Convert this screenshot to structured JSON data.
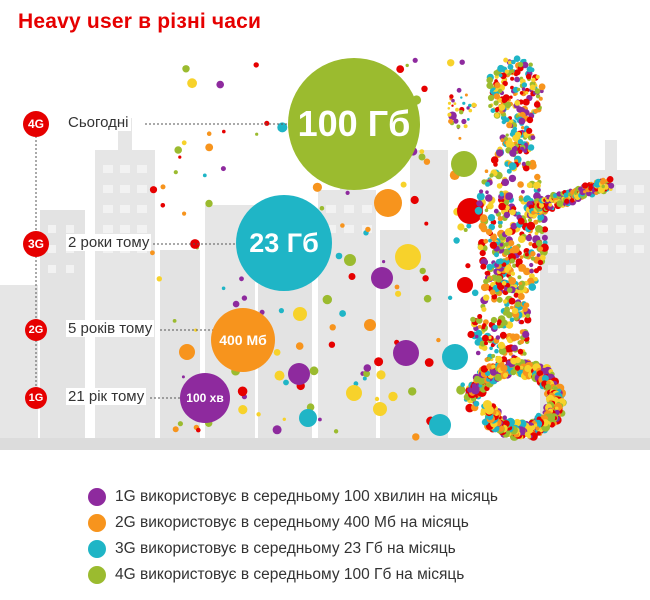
{
  "title": "Heavy user в різні часи",
  "colors": {
    "red": "#e60000",
    "purple": "#8e2a9e",
    "orange": "#f7941d",
    "teal": "#1fb5c6",
    "green": "#9bbb2f",
    "yellow": "#f7d22b",
    "skyline": "#e3e3e3",
    "ground": "#d9d9d9"
  },
  "timeline": [
    {
      "gen": "4G",
      "time": "Сьогодні",
      "value": "100 Гб",
      "color": "green"
    },
    {
      "gen": "3G",
      "time": "2 роки тому",
      "value": "23 Гб",
      "color": "teal"
    },
    {
      "gen": "2G",
      "time": "5 років тому",
      "value": "400 Мб",
      "color": "orange"
    },
    {
      "gen": "1G",
      "time": "21 рік тому",
      "value": "100 хв",
      "color": "purple"
    }
  ],
  "legend": [
    {
      "color": "purple",
      "text": "1G використовує в середньому 100 хвилин на місяць"
    },
    {
      "color": "orange",
      "text": "2G використовує в середньому 400 Мб на місяць"
    },
    {
      "color": "teal",
      "text": "3G використовує в середньому 23 Гб на місяць"
    },
    {
      "color": "green",
      "text": "4G використовує в середньому 100 Гб на місяць"
    }
  ]
}
